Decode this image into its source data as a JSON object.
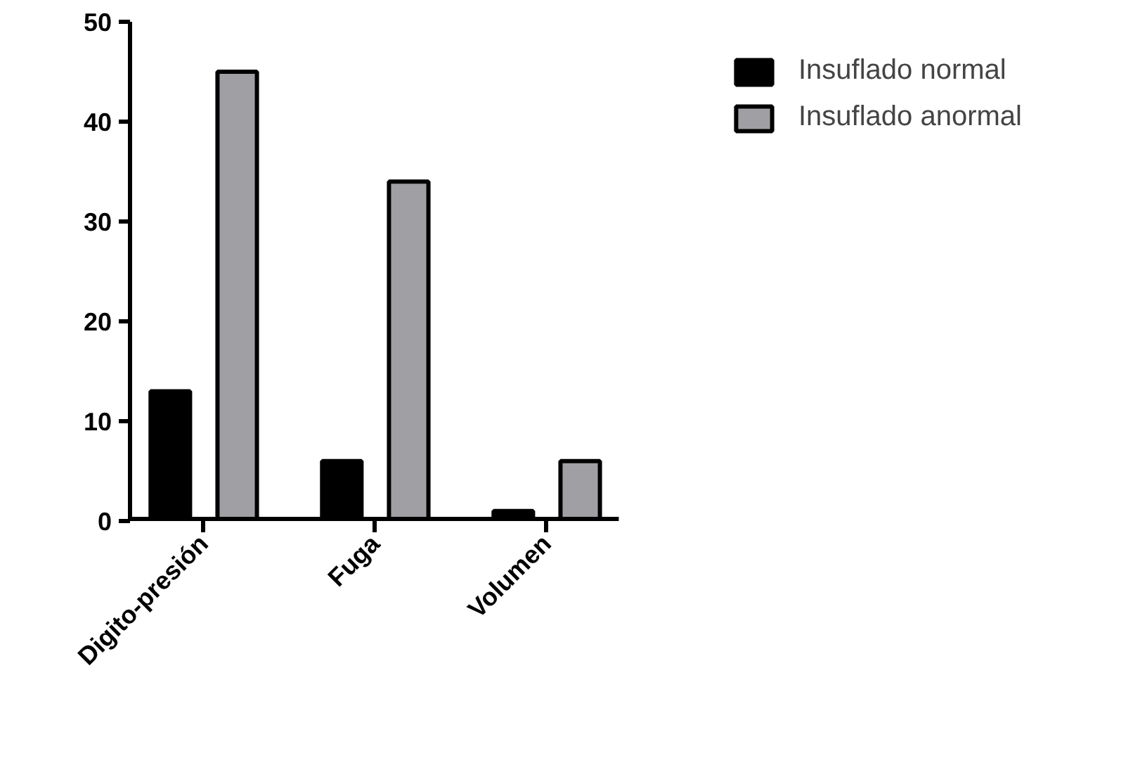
{
  "chart_data": {
    "type": "bar",
    "categories": [
      "Digito-presión",
      "Fuga",
      "Volumen"
    ],
    "series": [
      {
        "name": "Insuflado normal",
        "color": "#000000",
        "values": [
          13,
          6,
          1
        ]
      },
      {
        "name": "Insuflado anormal",
        "color": "#a0a0a4",
        "values": [
          45,
          34,
          6
        ]
      }
    ],
    "ylim": [
      0,
      50
    ],
    "yticks": [
      0,
      10,
      20,
      30,
      40,
      50
    ],
    "grid": false,
    "legend": "top right"
  }
}
